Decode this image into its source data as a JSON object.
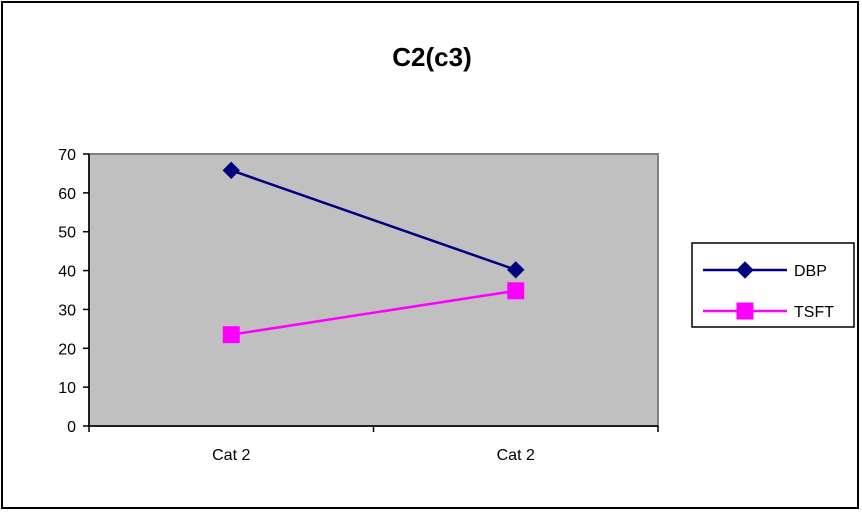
{
  "chart_data": {
    "type": "line",
    "title": "C2(c3)",
    "categories": [
      "Cat 2",
      "Cat 2"
    ],
    "xlabel": "",
    "ylabel": "",
    "ylim": [
      0,
      70
    ],
    "yticks": [
      0,
      10,
      20,
      30,
      40,
      50,
      60,
      70
    ],
    "grid": false,
    "legend_position": "right",
    "plot_background": "#c0c0c0",
    "series": [
      {
        "name": "DBP",
        "values": [
          65.8,
          40.2
        ],
        "color": "#000080",
        "marker": "diamond"
      },
      {
        "name": "TSFT",
        "values": [
          23.5,
          34.8
        ],
        "color": "#ff00ff",
        "marker": "square"
      }
    ]
  }
}
